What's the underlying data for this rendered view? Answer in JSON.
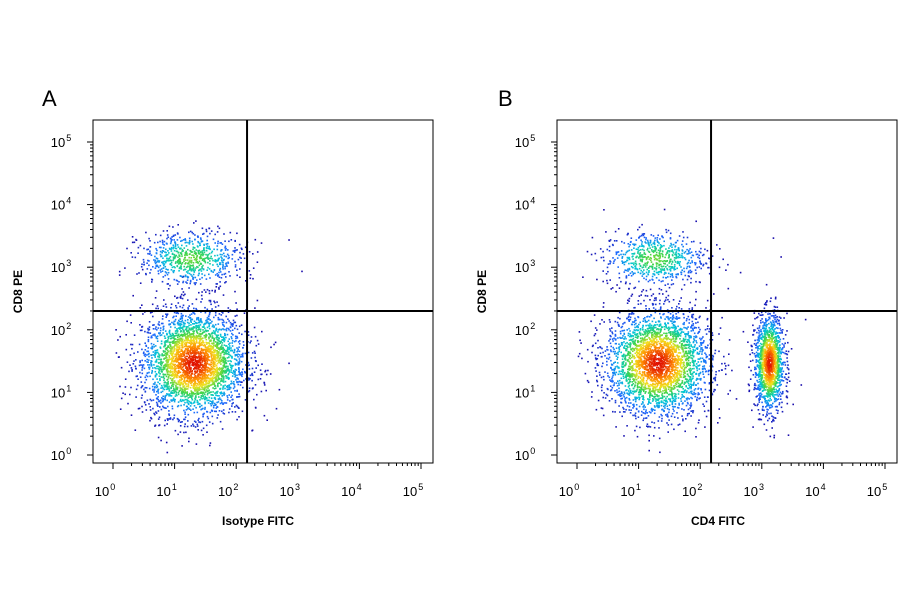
{
  "chart_data": [
    {
      "type": "scatter",
      "panel_label": "A",
      "xlabel": "Isotype FITC",
      "ylabel": "CD8 PE",
      "xscale": "log",
      "yscale": "log",
      "xlim": [
        1,
        100000
      ],
      "ylim": [
        1,
        100000
      ],
      "x_ticks": [
        "10",
        "10",
        "10",
        "10",
        "10",
        "10"
      ],
      "x_tick_exponents": [
        "0",
        "1",
        "2",
        "3",
        "4",
        "5"
      ],
      "y_ticks": [
        "10",
        "10",
        "10",
        "10",
        "10",
        "10"
      ],
      "y_tick_exponents": [
        "0",
        "1",
        "2",
        "3",
        "4",
        "5"
      ],
      "quadrant_gate": {
        "x": 150,
        "y": 200
      },
      "populations": [
        {
          "center_x": 20,
          "center_y": 30,
          "events": 3200,
          "peak_density": "high"
        },
        {
          "center_x": 18,
          "center_y": 1400,
          "events": 700,
          "peak_density": "medium"
        }
      ],
      "sparse_events": [
        [
          250,
          2500
        ],
        [
          700,
          2800
        ],
        [
          400,
          60
        ],
        [
          700,
          30
        ],
        [
          120,
          15
        ]
      ],
      "density_colormap": [
        "#1a0dab",
        "#1e6bff",
        "#00c8d8",
        "#3ad44a",
        "#f2e21e",
        "#ff8a00",
        "#e01000"
      ]
    },
    {
      "type": "scatter",
      "panel_label": "B",
      "xlabel": "CD4 FITC",
      "ylabel": "CD8 PE",
      "xscale": "log",
      "yscale": "log",
      "xlim": [
        1,
        100000
      ],
      "ylim": [
        1,
        100000
      ],
      "x_ticks": [
        "10",
        "10",
        "10",
        "10",
        "10",
        "10"
      ],
      "x_tick_exponents": [
        "0",
        "1",
        "2",
        "3",
        "4",
        "5"
      ],
      "y_ticks": [
        "10",
        "10",
        "10",
        "10",
        "10",
        "10"
      ],
      "y_tick_exponents": [
        "0",
        "1",
        "2",
        "3",
        "4",
        "5"
      ],
      "quadrant_gate": {
        "x": 150,
        "y": 200
      },
      "populations": [
        {
          "center_x": 20,
          "center_y": 30,
          "events": 3000,
          "peak_density": "high"
        },
        {
          "center_x": 18,
          "center_y": 1400,
          "events": 650,
          "peak_density": "medium"
        },
        {
          "center_x": 1300,
          "center_y": 30,
          "events": 1400,
          "peak_density": "high"
        }
      ],
      "sparse_events": [
        [
          1500,
          3000
        ],
        [
          2000,
          1500
        ],
        [
          5000,
          150
        ]
      ],
      "density_colormap": [
        "#1a0dab",
        "#1e6bff",
        "#00c8d8",
        "#3ad44a",
        "#f2e21e",
        "#ff8a00",
        "#e01000"
      ]
    }
  ]
}
